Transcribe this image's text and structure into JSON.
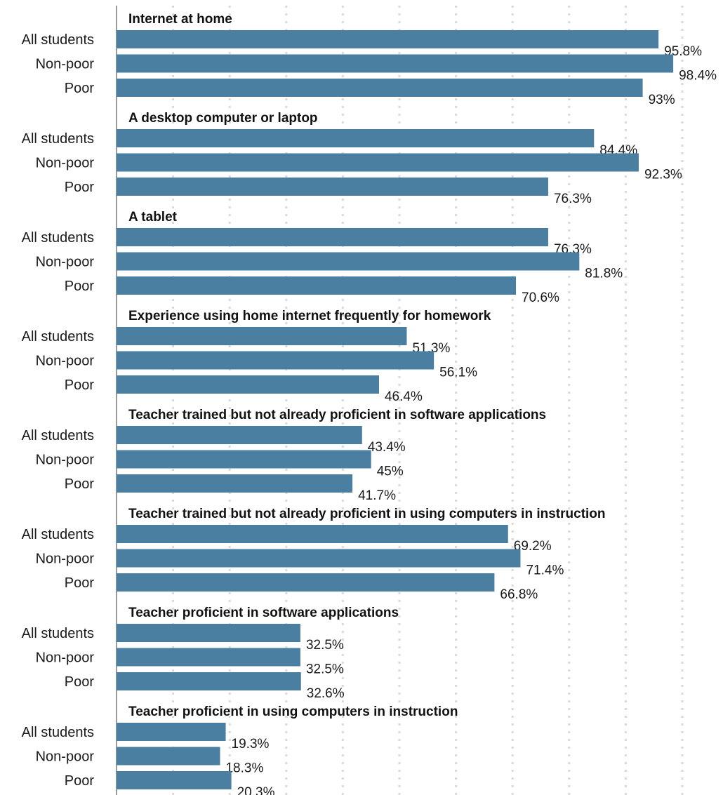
{
  "chart_data": {
    "type": "bar",
    "orientation": "horizontal",
    "xlim": [
      0,
      100
    ],
    "grid": true,
    "colors": {
      "bar": "#4a7fa2",
      "grid": "#d9d9d9",
      "axis": "#9a9a9a"
    },
    "row_labels": [
      "All students",
      "Non-poor",
      "Poor"
    ],
    "groups": [
      {
        "title": "Internet at home",
        "values": [
          95.8,
          98.4,
          93
        ],
        "labels": [
          "95.8%",
          "98.4%",
          "93%"
        ]
      },
      {
        "title": "A desktop computer or laptop",
        "values": [
          84.4,
          92.3,
          76.3
        ],
        "labels": [
          "84.4%",
          "92.3%",
          "76.3%"
        ]
      },
      {
        "title": "A tablet",
        "values": [
          76.3,
          81.8,
          70.6
        ],
        "labels": [
          "76.3%",
          "81.8%",
          "70.6%"
        ]
      },
      {
        "title": "Experience using home internet frequently for homework",
        "values": [
          51.3,
          56.1,
          46.4
        ],
        "labels": [
          "51.3%",
          "56.1%",
          "46.4%"
        ]
      },
      {
        "title": "Teacher trained but not already proficient in software applications",
        "values": [
          43.4,
          45,
          41.7
        ],
        "labels": [
          "43.4%",
          "45%",
          "41.7%"
        ]
      },
      {
        "title": "Teacher trained but not already proficient in using computers in instruction",
        "values": [
          69.2,
          71.4,
          66.8
        ],
        "labels": [
          "69.2%",
          "71.4%",
          "66.8%"
        ]
      },
      {
        "title": "Teacher proficient in software applications",
        "values": [
          32.5,
          32.5,
          32.6
        ],
        "labels": [
          "32.5%",
          "32.5%",
          "32.6%"
        ]
      },
      {
        "title": "Teacher proficient in using computers in instruction",
        "values": [
          19.3,
          18.3,
          20.3
        ],
        "labels": [
          "19.3%",
          "18.3%",
          "20.3%"
        ]
      }
    ]
  }
}
